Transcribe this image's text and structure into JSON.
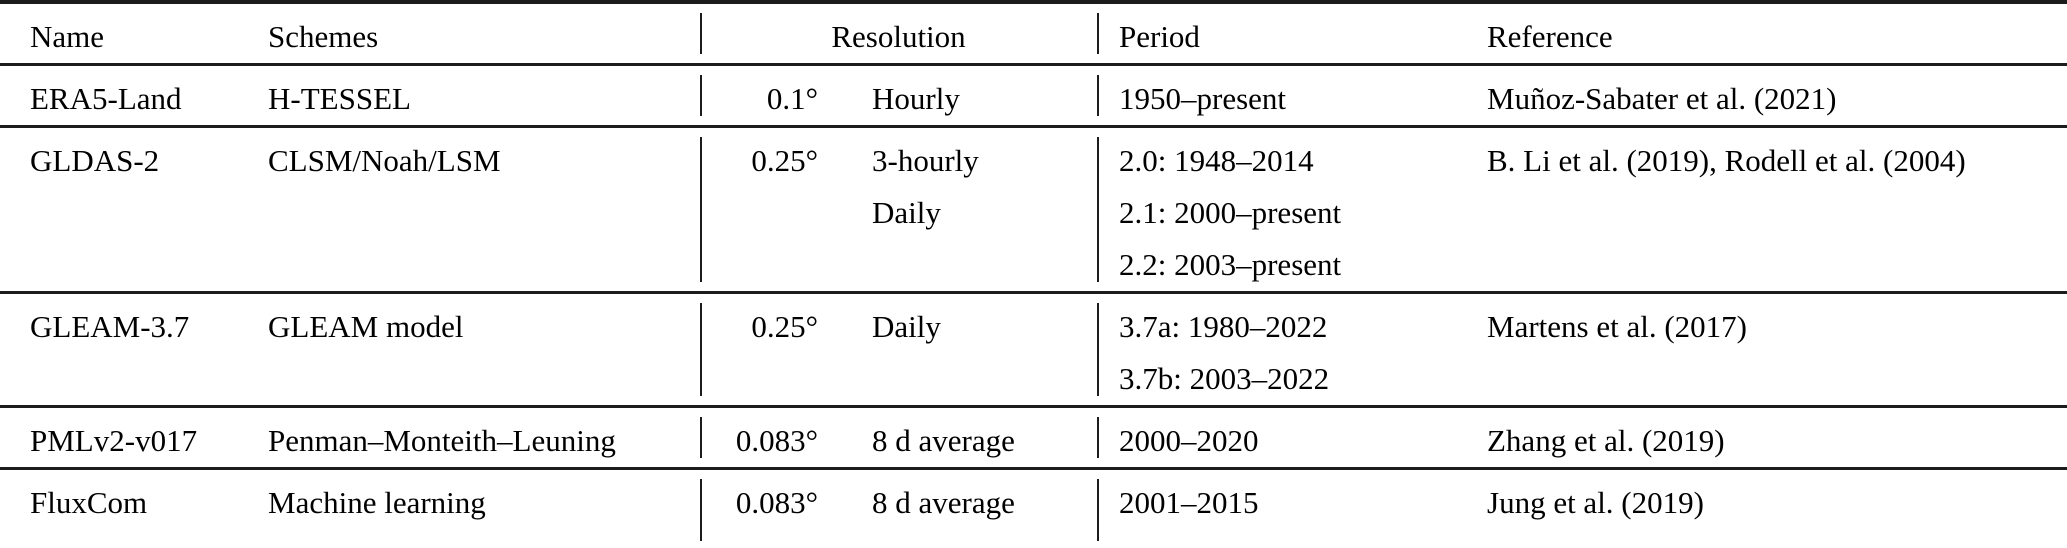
{
  "table": {
    "colors": {
      "text": "#000000",
      "rule": "#1c1c1c",
      "background": "#ffffff"
    },
    "columns": {
      "name": "Name",
      "schemes": "Schemes",
      "resolution": "Resolution",
      "period": "Period",
      "reference": "Reference"
    },
    "rows": [
      {
        "name": "ERA5-Land",
        "schemes": "H-TESSEL",
        "resolution_value": "0.1°",
        "resolution_frequency": [
          "Hourly"
        ],
        "period": [
          "1950–present"
        ],
        "reference": "Muñoz-Sabater et al. (2021)"
      },
      {
        "name": "GLDAS-2",
        "schemes": "CLSM/Noah/LSM",
        "resolution_value": "0.25°",
        "resolution_frequency": [
          "3-hourly",
          "Daily"
        ],
        "period": [
          "2.0: 1948–2014",
          "2.1: 2000–present",
          "2.2: 2003–present"
        ],
        "reference": "B. Li et al. (2019), Rodell et al. (2004)"
      },
      {
        "name": "GLEAM-3.7",
        "schemes": "GLEAM model",
        "resolution_value": "0.25°",
        "resolution_frequency": [
          "Daily"
        ],
        "period": [
          "3.7a: 1980–2022",
          "3.7b: 2003–2022"
        ],
        "reference": "Martens et al. (2017)"
      },
      {
        "name": "PMLv2-v017",
        "schemes": "Penman–Monteith–Leuning",
        "resolution_value": "0.083°",
        "resolution_frequency": [
          "8 d average"
        ],
        "period": [
          "2000–2020"
        ],
        "reference": "Zhang et al. (2019)"
      },
      {
        "name": "FluxCom",
        "schemes": "Machine learning",
        "resolution_value": "0.083°",
        "resolution_frequency": [
          "8 d average"
        ],
        "period": [
          "2001–2015"
        ],
        "reference": "Jung et al. (2019)"
      }
    ]
  }
}
